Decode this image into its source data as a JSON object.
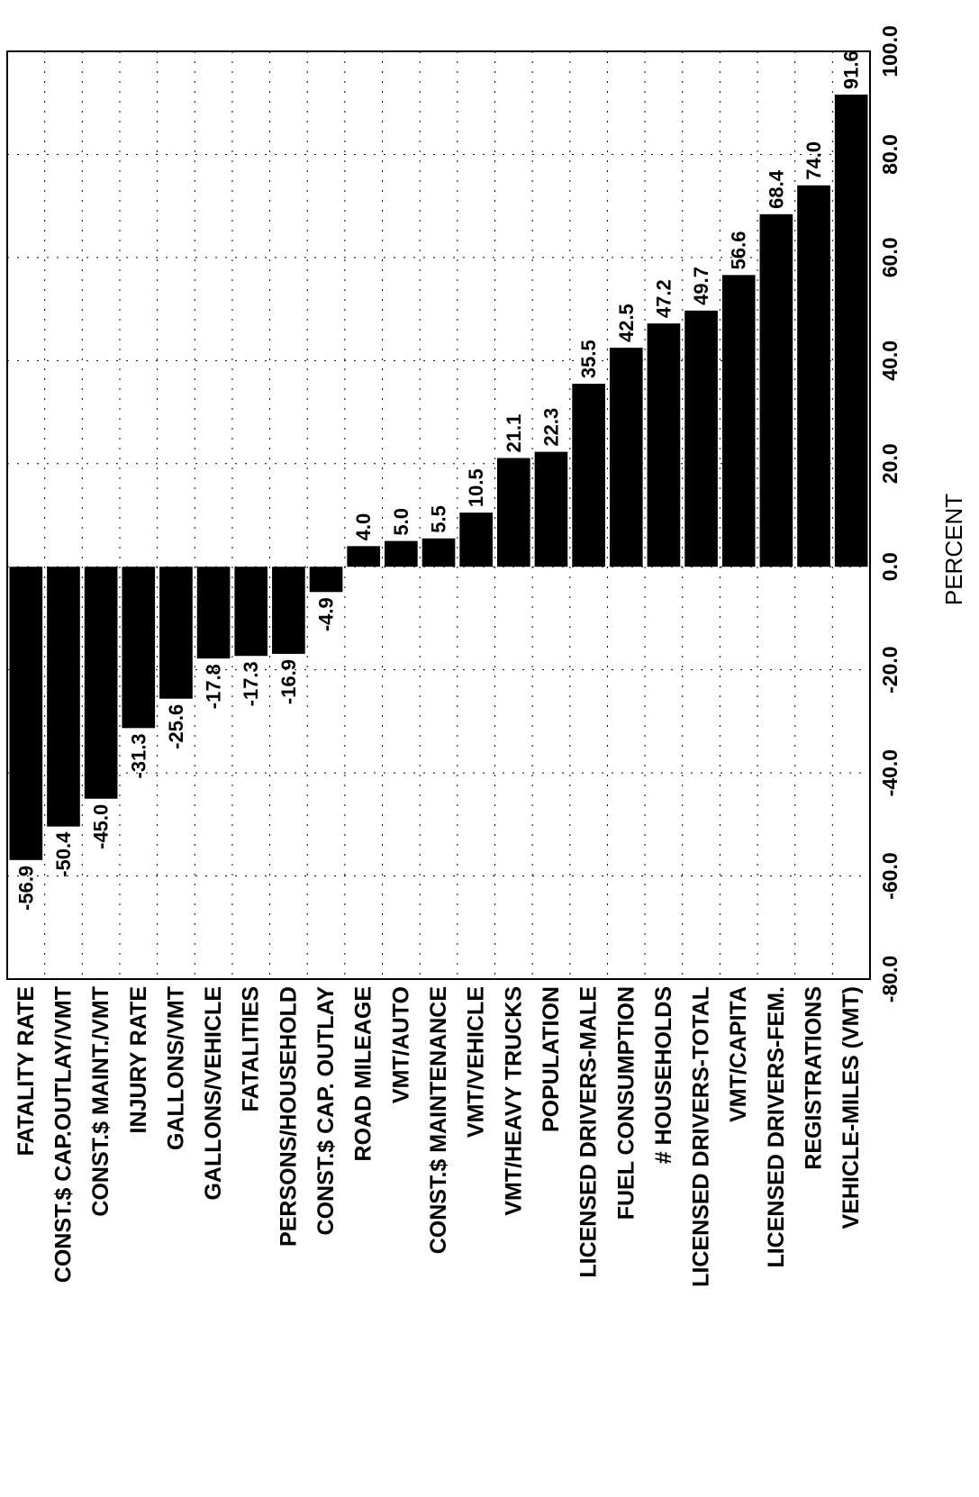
{
  "chart_data": {
    "type": "bar",
    "orientation": "horizontal",
    "title": "",
    "xlabel": "PERCENT",
    "ylabel": "",
    "xlim": [
      -80.0,
      100.0
    ],
    "x_ticks": [
      "-80.0",
      "-60.0",
      "-40.0",
      "-20.0",
      "0.0",
      "20.0",
      "40.0",
      "60.0",
      "80.0",
      "100.0"
    ],
    "grid": true,
    "legend": "none",
    "bar_color": "#000000",
    "categories": [
      "FATALITY RATE",
      "CONST.$ CAP.OUTLAY/VMT",
      "CONST.$ MAINT./VMT",
      "INJURY RATE",
      "GALLONS/VMT",
      "GALLONS/VEHICLE",
      "FATALITIES",
      "PERSONS/HOUSEHOLD",
      "CONST.$ CAP. OUTLAY",
      "ROAD MILEAGE",
      "VMT/AUTO",
      "CONST.$ MAINTENANCE",
      "VMT/VEHICLE",
      "VMT/HEAVY TRUCKS",
      "POPULATION",
      "LICENSED DRIVERS-MALE",
      "FUEL CONSUMPTION",
      "# HOUSEHOLDS",
      "LICENSED DRIVERS-TOTAL",
      "VMT/CAPITA",
      "LICENSED DRIVERS-FEM.",
      "REGISTRATIONS",
      "VEHICLE-MILES (VMT)"
    ],
    "values": [
      -56.9,
      -50.4,
      -45.0,
      -31.3,
      -25.6,
      -17.8,
      -17.3,
      -16.9,
      -4.9,
      4.0,
      5.0,
      5.5,
      10.5,
      21.1,
      22.3,
      35.5,
      42.5,
      47.2,
      49.7,
      56.6,
      68.4,
      74.0,
      91.6
    ],
    "value_labels": [
      "-56.9",
      "-50.4",
      "-45.0",
      "-31.3",
      "-25.6",
      "-17.8",
      "-17.3",
      "-16.9",
      "-4.9",
      "4.0",
      "5.0",
      "5.5",
      "10.5",
      "21.1",
      "22.3",
      "35.5",
      "42.5",
      "47.2",
      "49.7",
      "56.6",
      "68.4",
      "74.0",
      "91.6"
    ]
  }
}
